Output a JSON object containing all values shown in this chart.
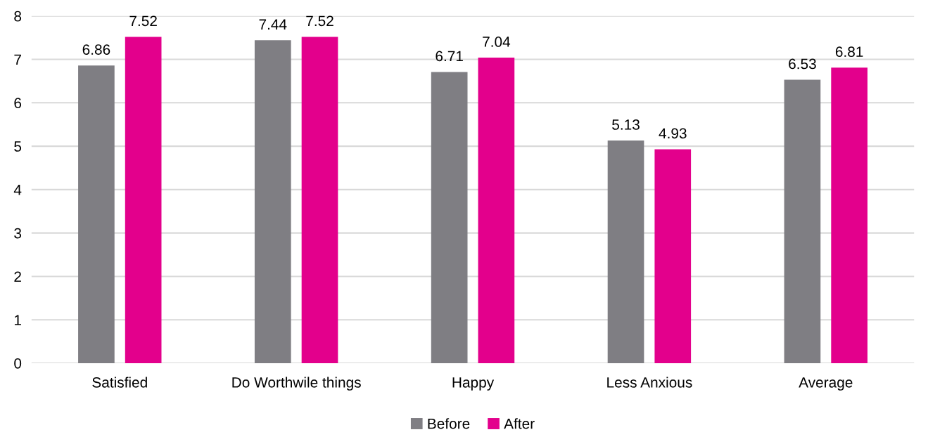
{
  "chart_data": {
    "type": "bar",
    "categories": [
      "Satisfied",
      "Do Worthwile things",
      "Happy",
      "Less Anxious",
      "Average"
    ],
    "series": [
      {
        "name": "Before",
        "color": "#7f7e83",
        "values": [
          6.86,
          7.44,
          6.71,
          5.13,
          6.53
        ]
      },
      {
        "name": "After",
        "color": "#e3008c",
        "values": [
          7.52,
          7.52,
          7.04,
          4.93,
          6.81
        ]
      }
    ],
    "ylim": [
      0,
      8
    ],
    "yticks": [
      0,
      1,
      2,
      3,
      4,
      5,
      6,
      7,
      8
    ],
    "grid": "y",
    "legend": "bottom",
    "data_labels": true
  }
}
